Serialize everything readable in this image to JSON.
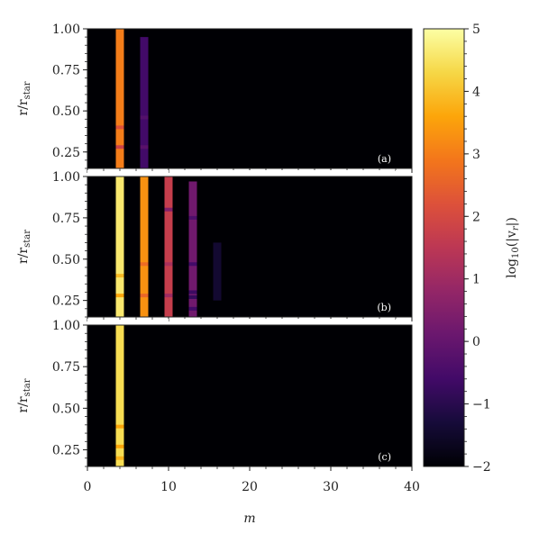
{
  "chart_data": {
    "type": "heatmap",
    "xlabel": "m",
    "xlim": [
      0,
      40
    ],
    "xticks": [
      0,
      10,
      20,
      30,
      40
    ],
    "ylabel_main": "r/r",
    "ylabel_sub": "star",
    "colorbar": {
      "label_main": "log",
      "label_sub": "10",
      "label_rest": "(|v",
      "label_var_sub": "r",
      "label_end": "|)",
      "vmin": -2,
      "vmax": 5,
      "ticks": [
        "−2",
        "−1",
        "0",
        "1",
        "2",
        "3",
        "4",
        "5"
      ],
      "tick_values": [
        -2,
        -1,
        0,
        1,
        2,
        3,
        4,
        5
      ],
      "colormap": "inferno"
    },
    "background_value": -2,
    "panels": [
      {
        "label": "(a)",
        "ylim": [
          0.15,
          1.0
        ],
        "yticks": [
          "0.25",
          "0.50",
          "0.75",
          "1.00"
        ],
        "ytick_values": [
          0.25,
          0.5,
          0.75,
          1.0
        ],
        "columns": [
          {
            "m": 3,
            "value": 3.0,
            "bands": [
              {
                "r": 0.4,
                "value": 2.2
              },
              {
                "r": 0.28,
                "value": 1.8
              }
            ]
          },
          {
            "m": 6,
            "value": -0.6,
            "bands": [
              {
                "r": 0.46,
                "value": -0.3
              },
              {
                "r": 0.28,
                "value": -0.2
              }
            ],
            "r_max": 0.95
          }
        ]
      },
      {
        "label": "(b)",
        "ylim": [
          0.15,
          1.0
        ],
        "yticks": [
          "0.25",
          "0.50",
          "0.75",
          "1.00"
        ],
        "ytick_values": [
          0.25,
          0.5,
          0.75,
          1.0
        ],
        "columns": [
          {
            "m": 3,
            "value": 4.6,
            "bands": [
              {
                "r": 0.4,
                "value": 3.9
              },
              {
                "r": 0.28,
                "value": 3.6
              }
            ]
          },
          {
            "m": 6,
            "value": 3.3,
            "bands": [
              {
                "r": 0.47,
                "value": 2.7
              },
              {
                "r": 0.28,
                "value": 2.6
              }
            ]
          },
          {
            "m": 9,
            "value": 1.7,
            "bands": [
              {
                "r": 0.8,
                "value": 0.5
              },
              {
                "r": 0.47,
                "value": 1.2
              },
              {
                "r": 0.28,
                "value": 1.0
              }
            ]
          },
          {
            "m": 12,
            "value": 0.2,
            "bands": [
              {
                "r": 0.75,
                "value": -0.4
              },
              {
                "r": 0.47,
                "value": -0.6
              },
              {
                "r": 0.3,
                "value": -0.7
              },
              {
                "r": 0.27,
                "value": -0.8
              },
              {
                "r": 0.2,
                "value": -0.6
              }
            ],
            "r_max": 0.97
          },
          {
            "m": 15,
            "value": -1.4,
            "bands": [],
            "r_max": 0.6,
            "r_min": 0.25
          }
        ]
      },
      {
        "label": "(c)",
        "ylim": [
          0.15,
          1.0
        ],
        "yticks": [
          "0.25",
          "0.50",
          "0.75",
          "1.00"
        ],
        "ytick_values": [
          0.25,
          0.5,
          0.75,
          1.0
        ],
        "columns": [
          {
            "m": 3,
            "value": 4.4,
            "bands": [
              {
                "r": 0.39,
                "value": 3.6
              },
              {
                "r": 0.27,
                "value": 3.6
              },
              {
                "r": 0.2,
                "value": 3.8
              }
            ]
          }
        ]
      }
    ]
  }
}
